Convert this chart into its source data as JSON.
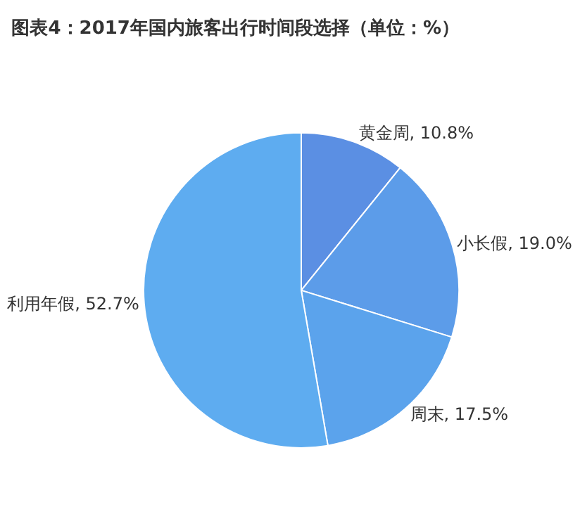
{
  "chart_data": {
    "type": "pie",
    "title": "图表4：2017年国内旅客出行时间段选择（单位：%）",
    "categories": [
      "黄金周",
      "小长假",
      "周末",
      "利用年假"
    ],
    "values": [
      10.8,
      19.0,
      17.5,
      52.7
    ],
    "value_labels": [
      "10.8%",
      "19.0%",
      "17.5%",
      "52.7%"
    ],
    "colors": [
      "#5b8fe3",
      "#5c9ce9",
      "#5ba3ec",
      "#5eacf0"
    ],
    "legend": false
  }
}
